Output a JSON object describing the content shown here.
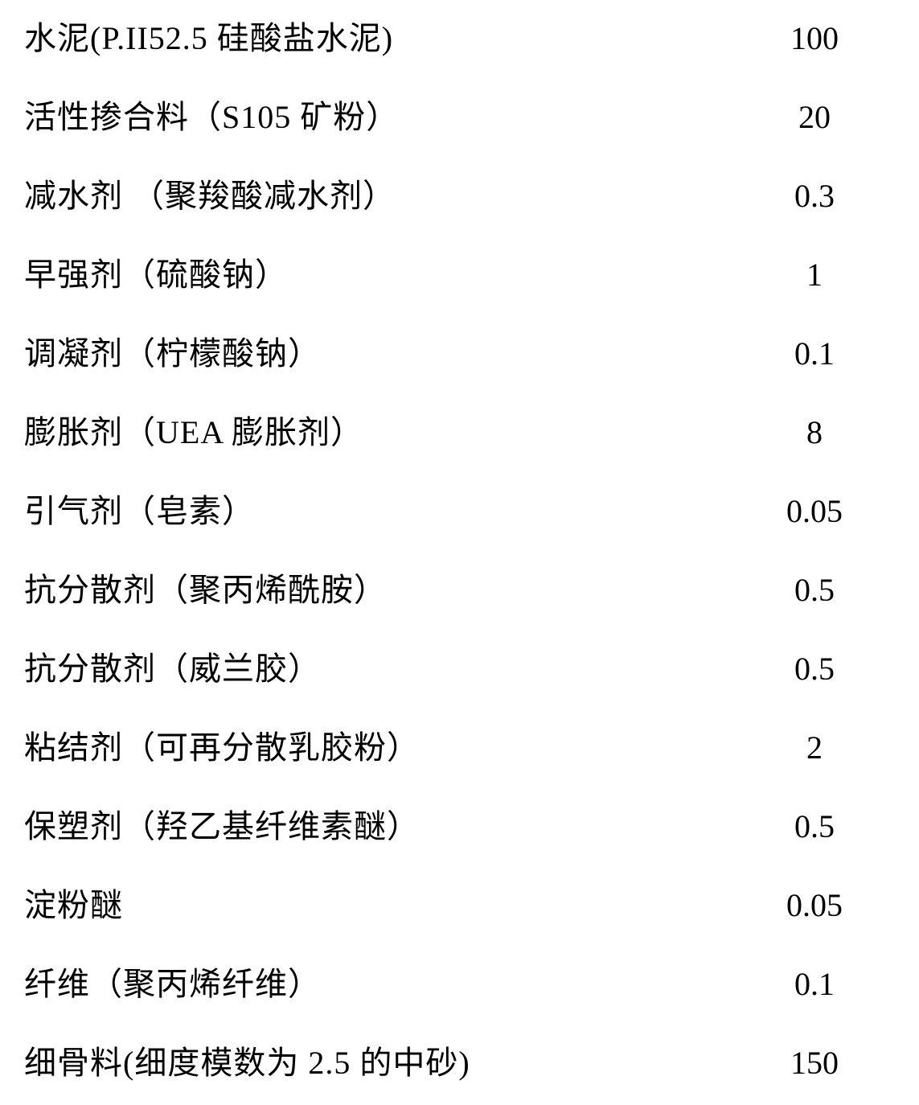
{
  "table": {
    "font_size": 40,
    "text_color": "#000000",
    "background_color": "#ffffff",
    "row_spacing": 42,
    "rows": [
      {
        "label": "水泥(P.II52.5 硅酸盐水泥)",
        "value": "100"
      },
      {
        "label": "活性掺合料（S105 矿粉）",
        "value": "20"
      },
      {
        "label": "减水剂 （聚羧酸减水剂）",
        "value": "0.3"
      },
      {
        "label": "早强剂（硫酸钠）",
        "value": "1"
      },
      {
        "label": "调凝剂（柠檬酸钠）",
        "value": "0.1"
      },
      {
        "label": "膨胀剂（UEA 膨胀剂）",
        "value": "8"
      },
      {
        "label": "引气剂（皂素）",
        "value": "0.05"
      },
      {
        "label": "抗分散剂（聚丙烯酰胺）",
        "value": "0.5"
      },
      {
        "label": "抗分散剂（威兰胶）",
        "value": "0.5"
      },
      {
        "label": "粘结剂（可再分散乳胶粉）",
        "value": "2"
      },
      {
        "label": "保塑剂（羟乙基纤维素醚）",
        "value": "0.5"
      },
      {
        "label": "淀粉醚",
        "value": "0.05"
      },
      {
        "label": "纤维（聚丙烯纤维）",
        "value": "0.1"
      },
      {
        "label": "细骨料(细度模数为 2.5 的中砂)",
        "value": "150"
      }
    ]
  }
}
